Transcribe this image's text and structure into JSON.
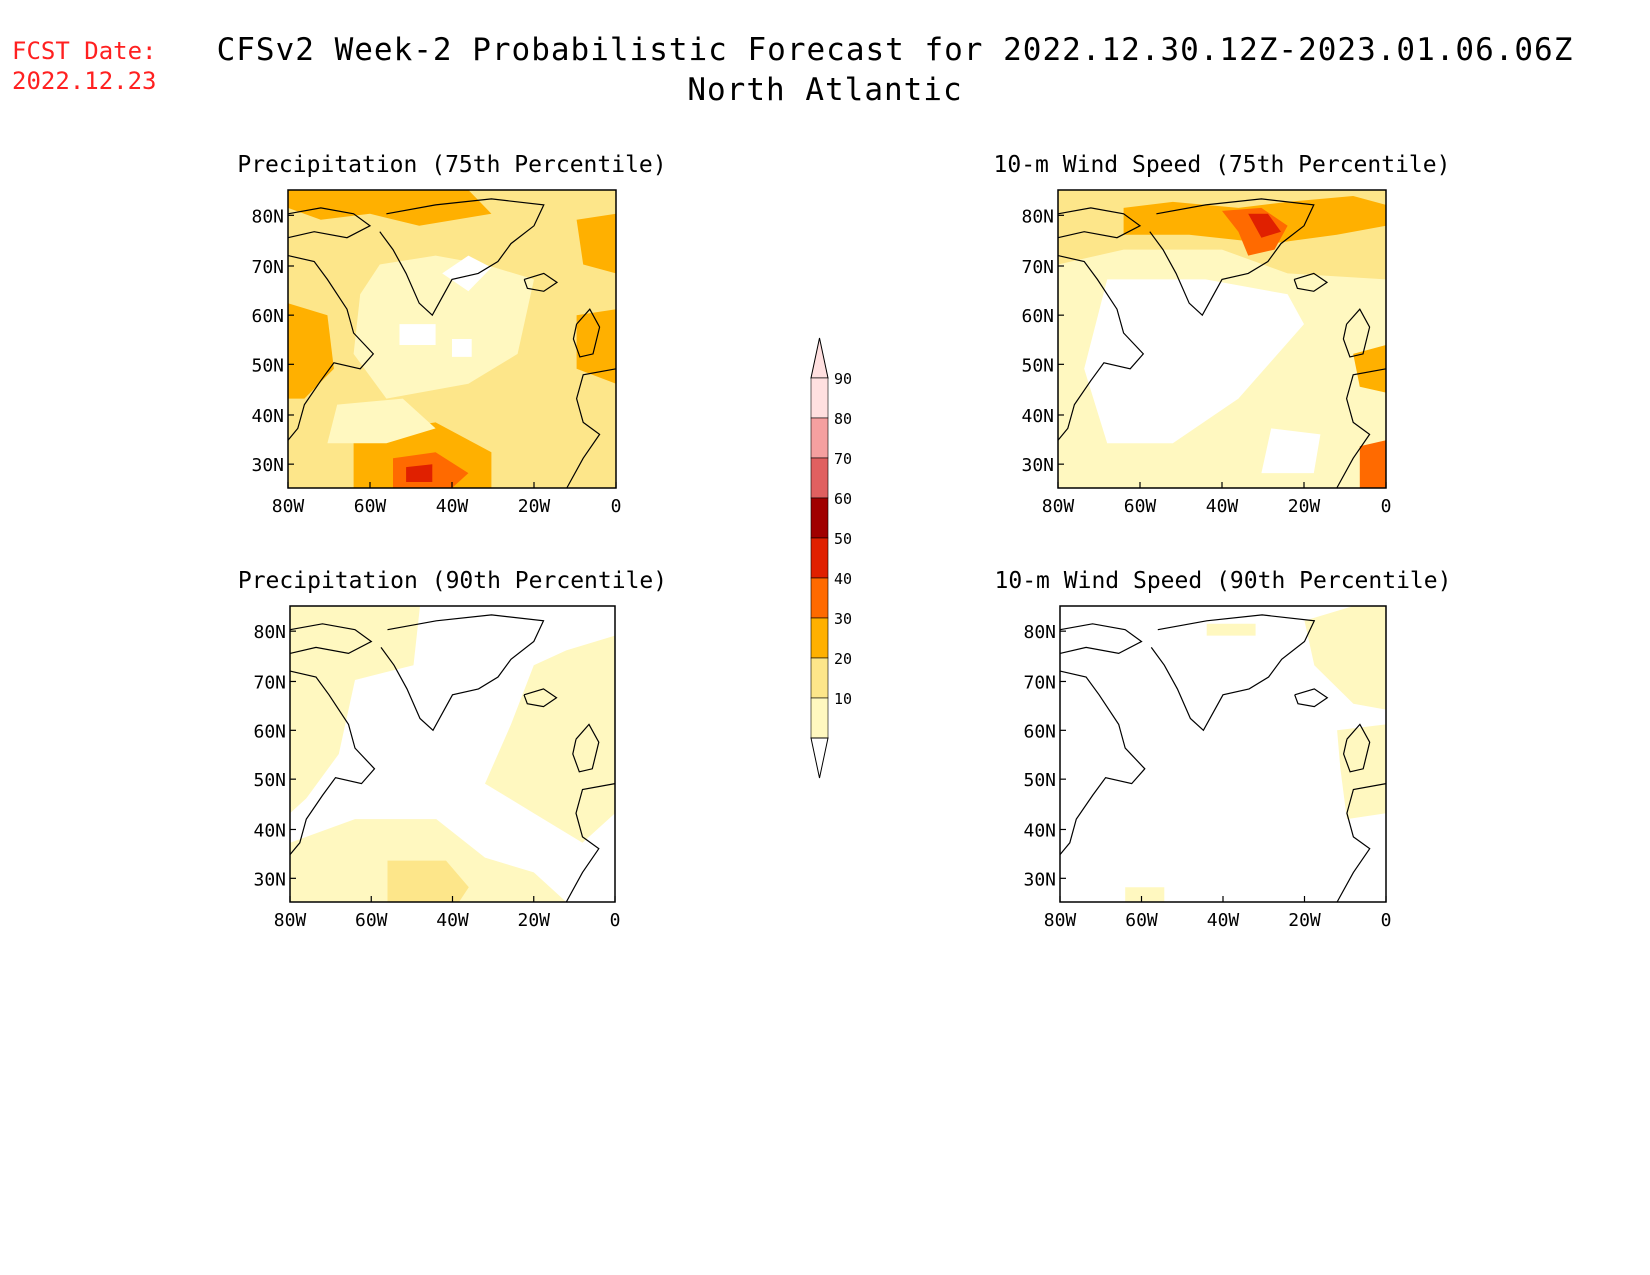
{
  "forecast_date": {
    "label": "FCST Date:",
    "value": "2022.12.23"
  },
  "title": {
    "line1": "CFSv2 Week-2 Probabilistic Forecast for 2022.12.30.12Z-2023.01.06.06Z",
    "line2": "North Atlantic"
  },
  "panels": [
    {
      "title": "Precipitation (75th Percentile)"
    },
    {
      "title": "10-m Wind Speed (75th Percentile)"
    },
    {
      "title": "Precipitation (90th Percentile)"
    },
    {
      "title": "10-m Wind Speed (90th Percentile)"
    }
  ],
  "axes": {
    "lat_labels": [
      "80N",
      "70N",
      "60N",
      "50N",
      "40N",
      "30N"
    ],
    "lon_labels": [
      "80W",
      "60W",
      "40W",
      "20W",
      "0"
    ]
  },
  "colorbar": {
    "labels": [
      "10",
      "20",
      "30",
      "40",
      "50",
      "60",
      "70",
      "80",
      "90"
    ],
    "colors": [
      "#fff8c0",
      "#fde68a",
      "#ffb000",
      "#ff6a00",
      "#e02000",
      "#a00000",
      "#e06060",
      "#f5a0a0",
      "#ffe0e0"
    ]
  }
}
